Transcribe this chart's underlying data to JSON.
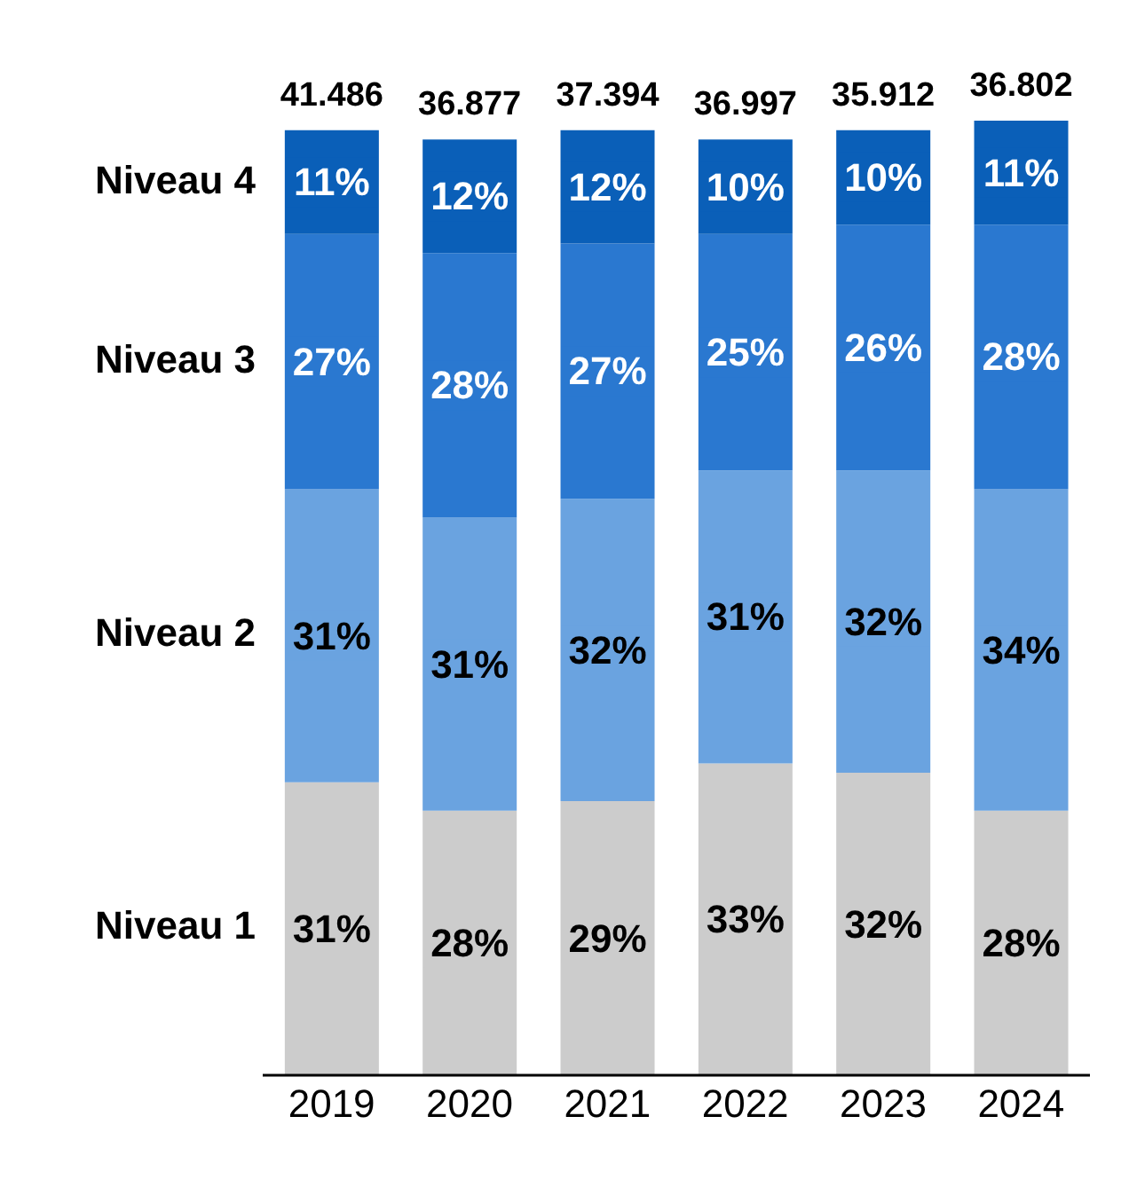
{
  "chart_data": {
    "type": "bar",
    "stacked": true,
    "categories": [
      "2019",
      "2020",
      "2021",
      "2022",
      "2023",
      "2024"
    ],
    "legend": "left",
    "tick_labels": "x",
    "annotations": [
      "41.486",
      "36.877",
      "37.394",
      "36.997",
      "35.912",
      "36.802"
    ],
    "series": [
      {
        "name": "Niveau 1",
        "color": "#cccccc",
        "values": [
          31,
          28,
          29,
          33,
          32,
          28
        ],
        "value_labels": [
          "31%",
          "28%",
          "29%",
          "33%",
          "32%",
          "28%"
        ]
      },
      {
        "name": "Niveau 2",
        "color": "#6aa3e0",
        "values": [
          31,
          31,
          32,
          31,
          32,
          34
        ],
        "value_labels": [
          "31%",
          "31%",
          "32%",
          "31%",
          "32%",
          "34%"
        ]
      },
      {
        "name": "Niveau 3",
        "color": "#2a78d0",
        "values": [
          27,
          28,
          27,
          25,
          26,
          28
        ],
        "value_labels": [
          "27%",
          "28%",
          "27%",
          "25%",
          "26%",
          "28%"
        ]
      },
      {
        "name": "Niveau 4",
        "color": "#0a5fb8",
        "values": [
          11,
          12,
          12,
          10,
          10,
          11
        ],
        "value_labels": [
          "11%",
          "12%",
          "12%",
          "10%",
          "10%",
          "11%"
        ]
      }
    ]
  }
}
